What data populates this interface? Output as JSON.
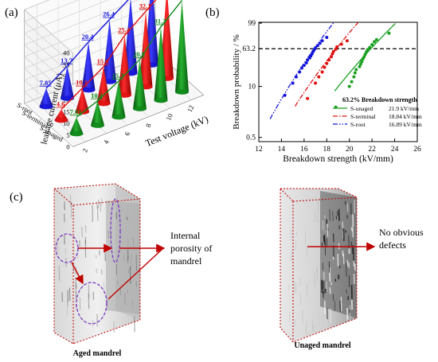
{
  "panels": {
    "a": "(a)",
    "b": "(b)",
    "c": "(c)"
  },
  "chart_data": [
    {
      "type": "3d-cone",
      "ylabel": "leakage current  (μA)",
      "xlabel": "Test voltage (kV)",
      "zlim": [
        0,
        40
      ],
      "zticks": [
        0,
        5,
        10,
        15,
        20,
        25,
        30,
        35,
        40
      ],
      "voltages": [
        2,
        4,
        6,
        8,
        10,
        12
      ],
      "samples": [
        "S-root",
        "S-terminal",
        "S-unaged"
      ],
      "series": [
        {
          "name": "S-root",
          "color": "#1515d8",
          "values": [
            7.85,
            13.7,
            20.4,
            26.4,
            32.3,
            39.2
          ]
        },
        {
          "name": "S-terminal",
          "color": "#e01010",
          "values": [
            4.6,
            10.1,
            15.6,
            25.4,
            32.1,
            38.8
          ]
        },
        {
          "name": "S-unaged",
          "color": "#0f8a1a",
          "values": [
            7.01,
            10.4,
            15.3,
            20.9,
            31.3,
            39
          ]
        }
      ],
      "labeled_values": {
        "S-root": [
          "7.85",
          "13.7",
          "20.4",
          "26.4",
          "32.3",
          "39.2"
        ],
        "S-terminal": [
          "4.6",
          "10.1",
          "15.6",
          "25.4",
          "32.1",
          "38.8"
        ],
        "S-unaged": [
          "7.01",
          "10.4",
          "15.3",
          "20.9",
          "31.3",
          "39"
        ]
      }
    },
    {
      "type": "scatter",
      "xlabel": "Breakdown strength (kV/mm)",
      "ylabel": "Breakdown probability / %",
      "xlim": [
        12,
        26
      ],
      "xticks": [
        12,
        14,
        16,
        18,
        20,
        22,
        24,
        26
      ],
      "yscale": "weibull",
      "yticks": [
        "0.5",
        "10",
        "63.2",
        "99"
      ],
      "ytick_values": [
        0.5,
        10,
        63.2,
        99
      ],
      "reference_line": 63.2,
      "legend_title": "63.2% Breakdown strength",
      "legend_position": "bottom-right",
      "series": [
        {
          "name": "S-unaged",
          "value_label": "21.9 kV/mm",
          "color": "#1aa020",
          "line_dash": "solid",
          "scale": 21.9,
          "shape": 16,
          "fit_x": [
            18.7,
            24.5
          ],
          "points": [
            [
              18.8,
              3
            ],
            [
              20.0,
              10
            ],
            [
              20.2,
              13
            ],
            [
              20.4,
              17
            ],
            [
              20.5,
              21
            ],
            [
              20.6,
              25
            ],
            [
              20.9,
              29
            ],
            [
              21.0,
              33
            ],
            [
              21.1,
              37
            ],
            [
              21.2,
              42
            ],
            [
              21.3,
              46
            ],
            [
              21.4,
              51
            ],
            [
              21.5,
              56
            ],
            [
              21.6,
              61
            ],
            [
              21.8,
              66
            ],
            [
              22.0,
              72
            ],
            [
              22.2,
              78
            ],
            [
              22.4,
              82
            ],
            [
              23.5,
              92
            ]
          ]
        },
        {
          "name": "S-terminal",
          "value_label": "18.84 kV/mm",
          "color": "#e01010",
          "line_dash": "dashdot",
          "scale": 18.84,
          "shape": 16,
          "fit_x": [
            15.2,
            21.2
          ],
          "points": [
            [
              16.3,
              5
            ],
            [
              17.0,
              12
            ],
            [
              17.3,
              17
            ],
            [
              17.6,
              22
            ],
            [
              17.8,
              28
            ],
            [
              18.0,
              34
            ],
            [
              18.2,
              40
            ],
            [
              18.4,
              46
            ],
            [
              18.5,
              52
            ],
            [
              18.6,
              57
            ],
            [
              18.8,
              62
            ],
            [
              18.9,
              67
            ],
            [
              19.3,
              73
            ],
            [
              19.8,
              80
            ]
          ]
        },
        {
          "name": "S-root",
          "value_label": "16.89 kV/mm",
          "color": "#1515d8",
          "line_dash": "dashdotdot",
          "scale": 16.89,
          "shape": 16,
          "fit_x": [
            13.0,
            18.6
          ],
          "points": [
            [
              14.3,
              6
            ],
            [
              15.0,
              12
            ],
            [
              15.3,
              17
            ],
            [
              15.6,
              22
            ],
            [
              15.8,
              27
            ],
            [
              16.0,
              31
            ],
            [
              16.2,
              35
            ],
            [
              16.3,
              40
            ],
            [
              16.5,
              44
            ],
            [
              16.6,
              48
            ],
            [
              16.7,
              52
            ],
            [
              16.8,
              57
            ],
            [
              16.9,
              61
            ],
            [
              17.0,
              65
            ],
            [
              17.2,
              70
            ],
            [
              17.4,
              75
            ],
            [
              17.6,
              80
            ],
            [
              18.0,
              86
            ]
          ]
        }
      ]
    }
  ],
  "panel_c": {
    "aged_caption": "Aged mandrel",
    "unaged_caption": "Unaged mandrel",
    "aged_annotation": [
      "Internal",
      "porosity of",
      "mandrel"
    ],
    "unaged_annotation": [
      "No obvious",
      "defects"
    ]
  }
}
